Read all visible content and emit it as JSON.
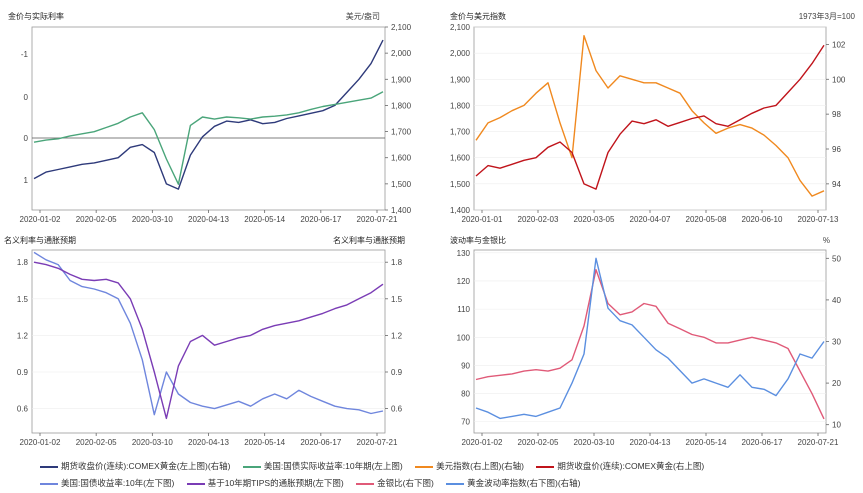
{
  "chart_data": [
    {
      "type": "line",
      "title": "金价与实际利率",
      "right_unit": "美元/盎司",
      "x_ticks": [
        "2020-01-02",
        "2020-02-05",
        "2020-03-10",
        "2020-04-13",
        "2020-05-14",
        "2020-06-17",
        "2020-07-21"
      ],
      "y_left": {
        "ticks": [
          "-1",
          "0",
          "0",
          "1"
        ],
        "inverted": true
      },
      "y_right": {
        "ticks": [
          "2,100",
          "2,000",
          "1,900",
          "1,800",
          "1,700",
          "1,600",
          "1,500",
          "1,400"
        ],
        "range": [
          1400,
          2100
        ]
      },
      "series": [
        {
          "name": "期货收盘价(连续):COMEX黄金(左上图)(右轴)",
          "color": "#2e3a7a",
          "axis": "right",
          "values": [
            1520,
            1545,
            1555,
            1565,
            1575,
            1580,
            1590,
            1600,
            1640,
            1650,
            1620,
            1500,
            1480,
            1610,
            1680,
            1720,
            1740,
            1735,
            1745,
            1730,
            1735,
            1750,
            1760,
            1770,
            1780,
            1800,
            1850,
            1900,
            1960,
            2050
          ]
        },
        {
          "name": "美国:国债实际收益率:10年期(左上图)",
          "color": "#4aa57a",
          "axis": "left_inverted",
          "values": [
            0.1,
            0.05,
            0.02,
            -0.05,
            -0.1,
            -0.15,
            -0.25,
            -0.35,
            -0.5,
            -0.6,
            -0.2,
            0.5,
            1.1,
            -0.3,
            -0.5,
            -0.45,
            -0.5,
            -0.48,
            -0.45,
            -0.5,
            -0.52,
            -0.55,
            -0.6,
            -0.68,
            -0.75,
            -0.8,
            -0.85,
            -0.9,
            -0.95,
            -1.1
          ]
        }
      ]
    },
    {
      "type": "line",
      "title": "金价与美元指数",
      "right_unit": "1973年3月=100",
      "x_ticks": [
        "2020-01-01",
        "2020-02-03",
        "2020-03-05",
        "2020-04-07",
        "2020-05-08",
        "2020-06-10",
        "2020-07-13"
      ],
      "y_left": {
        "ticks": [
          "2,100",
          "2,000",
          "1,900",
          "1,800",
          "1,700",
          "1,600",
          "1,500",
          "1,400"
        ],
        "range": [
          1400,
          2100
        ]
      },
      "y_right": {
        "ticks": [
          "102",
          "100",
          "98",
          "96",
          "94"
        ],
        "range": [
          92.5,
          103
        ]
      },
      "series": [
        {
          "name": "美元指数(右上图)(右轴)",
          "color": "#f0891f",
          "axis": "right",
          "values": [
            96.5,
            97.5,
            97.8,
            98.2,
            98.5,
            99.2,
            99.8,
            97.5,
            95.5,
            102.5,
            100.5,
            99.5,
            100.2,
            100.0,
            99.8,
            99.8,
            99.5,
            99.2,
            98.2,
            97.5,
            96.9,
            97.2,
            97.4,
            97.2,
            96.8,
            96.2,
            95.5,
            94.2,
            93.3,
            93.6
          ]
        },
        {
          "name": "期货收盘价(连续):COMEX黄金(右上图)",
          "color": "#c0141b",
          "axis": "left",
          "values": [
            1530,
            1570,
            1560,
            1575,
            1590,
            1600,
            1640,
            1660,
            1620,
            1500,
            1480,
            1620,
            1690,
            1740,
            1730,
            1745,
            1720,
            1735,
            1750,
            1760,
            1730,
            1720,
            1745,
            1770,
            1790,
            1800,
            1850,
            1900,
            1960,
            2030
          ]
        }
      ]
    },
    {
      "type": "line",
      "title": "名义利率与通胀预期",
      "right_title": "名义利率与通胀预期",
      "x_ticks": [
        "2020-01-02",
        "2020-02-05",
        "2020-03-10",
        "2020-04-13",
        "2020-05-14",
        "2020-06-17",
        "2020-07-21"
      ],
      "y_left": {
        "ticks": [
          "1.8",
          "1.5",
          "1.2",
          "0.9",
          "0.6"
        ],
        "range": [
          0.4,
          1.9
        ]
      },
      "y_right": {
        "ticks": [
          "1.8",
          "1.5",
          "1.2",
          "0.9",
          "0.6"
        ],
        "range": [
          0.4,
          1.9
        ]
      },
      "series": [
        {
          "name": "美国:国债收益率:10年(左下图)",
          "color": "#6f86dd",
          "values": [
            1.88,
            1.82,
            1.78,
            1.65,
            1.6,
            1.58,
            1.55,
            1.5,
            1.3,
            1.0,
            0.55,
            0.9,
            0.72,
            0.65,
            0.62,
            0.6,
            0.63,
            0.66,
            0.62,
            0.68,
            0.72,
            0.68,
            0.75,
            0.7,
            0.66,
            0.62,
            0.6,
            0.59,
            0.56,
            0.58
          ]
        },
        {
          "name": "基于10年期TIPS的通胀预期(左下图)",
          "color": "#7a3cb5",
          "values": [
            1.8,
            1.78,
            1.75,
            1.7,
            1.66,
            1.65,
            1.66,
            1.63,
            1.5,
            1.25,
            0.9,
            0.52,
            0.95,
            1.15,
            1.2,
            1.12,
            1.15,
            1.18,
            1.2,
            1.25,
            1.28,
            1.3,
            1.32,
            1.35,
            1.38,
            1.42,
            1.45,
            1.5,
            1.55,
            1.62
          ]
        }
      ]
    },
    {
      "type": "line",
      "title": "波动率与金银比",
      "right_unit": "%",
      "x_ticks": [
        "2020-01-02",
        "2020-02-05",
        "2020-03-10",
        "2020-04-13",
        "2020-05-14",
        "2020-06-17",
        "2020-07-21"
      ],
      "y_left": {
        "ticks": [
          "130",
          "120",
          "110",
          "100",
          "90",
          "80",
          "70"
        ],
        "range": [
          66,
          131
        ]
      },
      "y_right": {
        "ticks": [
          "50",
          "40",
          "30",
          "20",
          "10"
        ],
        "range": [
          8,
          52
        ]
      },
      "series": [
        {
          "name": "金银比(右下图)",
          "color": "#e05a78",
          "axis": "left",
          "values": [
            85,
            86,
            86.5,
            87,
            88,
            88.5,
            88,
            89,
            92,
            104,
            124,
            112,
            108,
            109,
            112,
            111,
            105,
            103,
            101,
            100,
            98,
            98,
            99,
            100,
            99,
            98,
            96,
            88,
            80,
            71
          ]
        },
        {
          "name": "黄金波动率指数(右下图)(右轴)",
          "color": "#5b8fe0",
          "axis": "right",
          "values": [
            14,
            13,
            11.5,
            12,
            12.5,
            12,
            13,
            14,
            20,
            27,
            50,
            38,
            35,
            34,
            31,
            28,
            26,
            23,
            20,
            21,
            20,
            19,
            22,
            19,
            18.5,
            17,
            21,
            27,
            26,
            30
          ]
        }
      ]
    }
  ]
}
